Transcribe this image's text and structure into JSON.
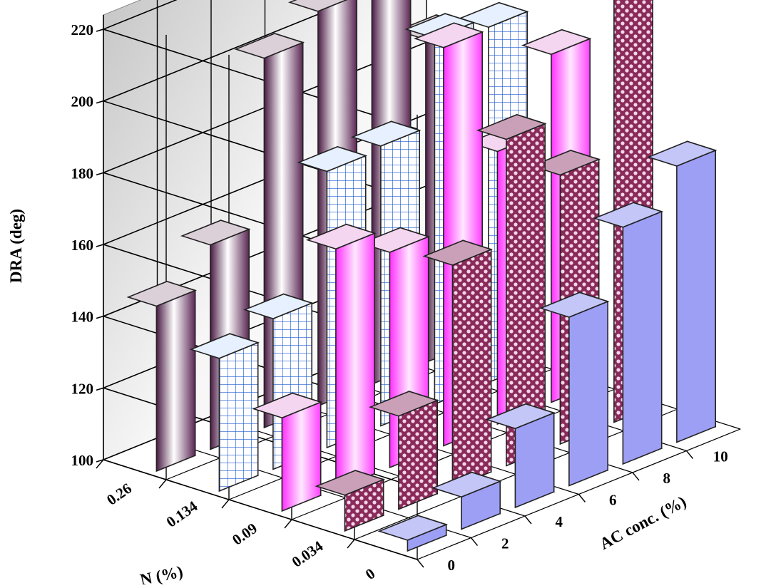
{
  "chart_data": {
    "type": "bar",
    "subtype": "3d-bar",
    "ylabel": "DRA (deg)",
    "zlabel": "N (%)",
    "xlabel": "AC conc. (%)",
    "ylim": [
      100,
      220
    ],
    "yticks": [
      "100",
      "120",
      "140",
      "160",
      "180",
      "200",
      "220"
    ],
    "ac_categories": [
      "0",
      "2",
      "4",
      "6",
      "8",
      "10"
    ],
    "n_categories": [
      "0.26",
      "0.134",
      "0.09",
      "0.034",
      "0"
    ],
    "grid": true,
    "series": [
      {
        "name": "0.26",
        "style": "purple-gradient",
        "values": [
          146,
          157,
          203,
          210,
          226,
          190
        ]
      },
      {
        "name": "0.134",
        "style": "blue-grid",
        "values": [
          137,
          142,
          177,
          178,
          202,
          199
        ]
      },
      {
        "name": "0.09",
        "style": "magenta-gradient",
        "values": [
          126,
          167,
          160,
          211,
          176,
          197
        ]
      },
      {
        "name": "0.034",
        "style": "dot-pattern",
        "values": [
          110,
          126,
          162,
          191,
          175,
          226
        ]
      },
      {
        "name": "0",
        "style": "periwinkle",
        "values": [
          103,
          109,
          122,
          147,
          166,
          177
        ]
      }
    ]
  }
}
